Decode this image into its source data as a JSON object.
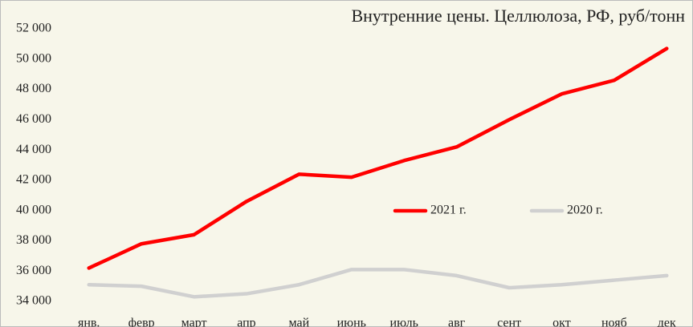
{
  "chart_data": {
    "type": "line",
    "title": "Внутренние цены. Целлюлоза, РФ, руб/тонн",
    "categories": [
      "янв.",
      "февр",
      "март",
      "апр",
      "май",
      "июнь",
      "июль",
      "авг",
      "сент",
      "окт",
      "нояб",
      "дек"
    ],
    "series": [
      {
        "name": "2021 г.",
        "color": "#ff0000",
        "values": [
          36200,
          37800,
          38400,
          40600,
          42400,
          42200,
          43300,
          44200,
          46000,
          47700,
          48600,
          50700
        ]
      },
      {
        "name": "2020 г.",
        "color": "#d0d0d0",
        "values": [
          35100,
          35000,
          34300,
          34500,
          35100,
          36100,
          36100,
          35700,
          34900,
          35100,
          35400,
          35700
        ]
      }
    ],
    "ylim": [
      34000,
      52000
    ],
    "yticks": [
      {
        "value": 34000,
        "label": "34 000"
      },
      {
        "value": 36000,
        "label": "36 000"
      },
      {
        "value": 38000,
        "label": "38 000"
      },
      {
        "value": 40000,
        "label": "40 000"
      },
      {
        "value": 42000,
        "label": "42 000"
      },
      {
        "value": 44000,
        "label": "44 000"
      },
      {
        "value": 46000,
        "label": "46 000"
      },
      {
        "value": 48000,
        "label": "48 000"
      },
      {
        "value": 50000,
        "label": "50 000"
      },
      {
        "value": 52000,
        "label": "52 000"
      }
    ],
    "grid": false
  }
}
